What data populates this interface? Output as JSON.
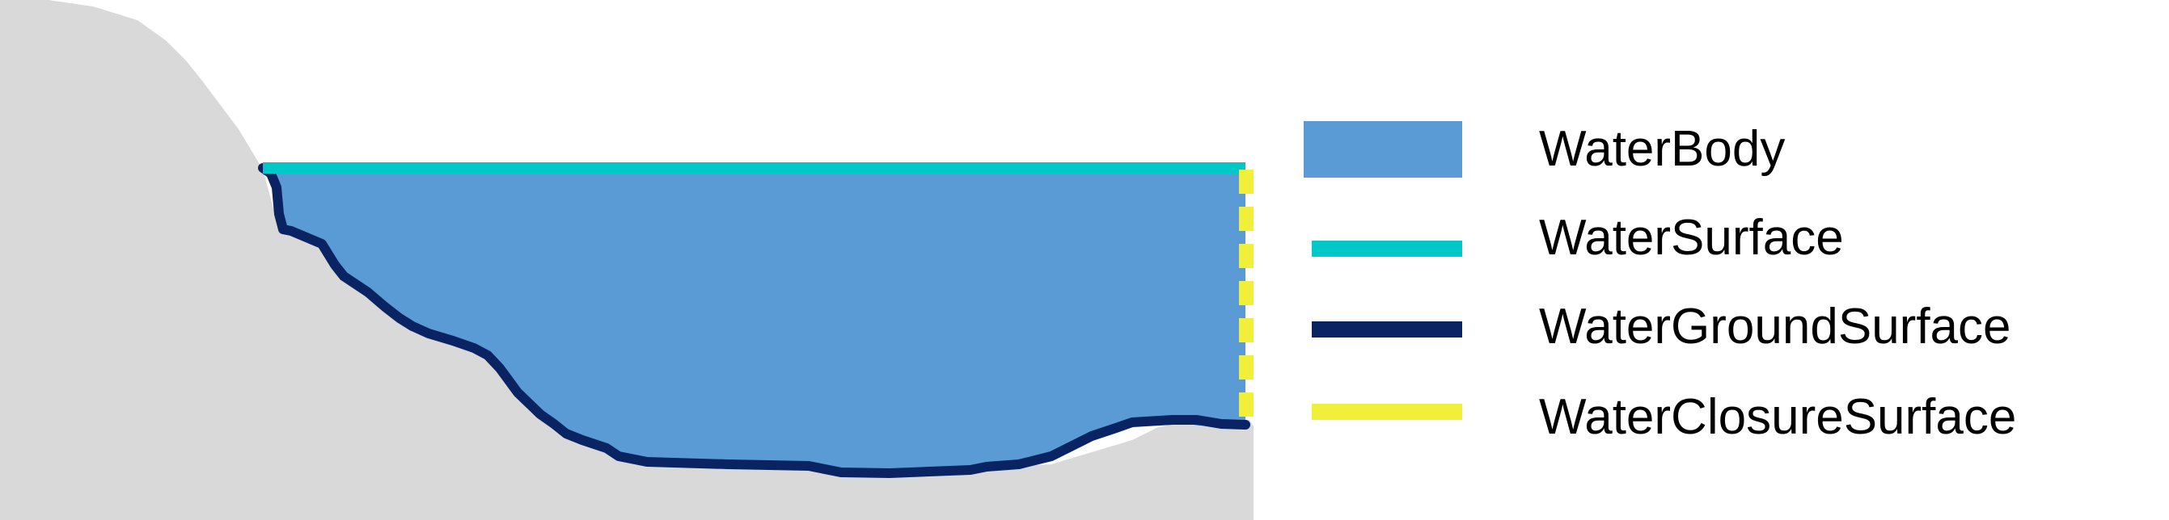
{
  "colors": {
    "terrain": "#d9d9d9",
    "water_body": "#5b9bd5",
    "water_surface": "#00c8c8",
    "water_ground_surface": "#0a2463",
    "water_closure_surface": "#f0f03a"
  },
  "legend": {
    "items": [
      {
        "id": "water-body",
        "label": "WaterBody",
        "swatch": "box"
      },
      {
        "id": "water-surface",
        "label": "WaterSurface",
        "swatch": "line"
      },
      {
        "id": "water-ground-surface",
        "label": "WaterGroundSurface",
        "swatch": "line"
      },
      {
        "id": "water-closure-surface",
        "label": "WaterClosureSurface",
        "swatch": "dashed-line"
      }
    ]
  }
}
